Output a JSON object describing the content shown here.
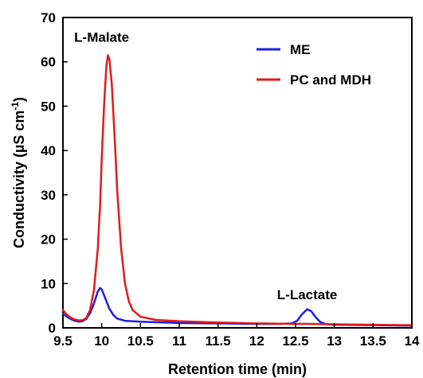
{
  "chart_data": {
    "type": "line",
    "xlabel": "Retention time (min)",
    "ylabel_main": "Conductivity (µS cm",
    "ylabel_sup": "-1",
    "ylabel_close": ")",
    "xlim": [
      9.5,
      14
    ],
    "ylim": [
      0,
      70
    ],
    "x_ticks": [
      "9.5",
      "10",
      "10.5",
      "11",
      "11.5",
      "12",
      "12.5",
      "13",
      "13.5",
      "14"
    ],
    "y_ticks": [
      "0",
      "10",
      "20",
      "30",
      "40",
      "50",
      "60",
      "70"
    ],
    "grid": false,
    "legend_position": "top-right",
    "series": [
      {
        "name": "ME",
        "color": "#1f1fe0",
        "points": [
          [
            9.5,
            3.2
          ],
          [
            9.55,
            2.5
          ],
          [
            9.6,
            2.0
          ],
          [
            9.65,
            1.6
          ],
          [
            9.7,
            1.4
          ],
          [
            9.75,
            1.5
          ],
          [
            9.8,
            2.0
          ],
          [
            9.85,
            3.3
          ],
          [
            9.9,
            5.5
          ],
          [
            9.95,
            8.2
          ],
          [
            9.98,
            9.0
          ],
          [
            10.0,
            8.7
          ],
          [
            10.05,
            6.5
          ],
          [
            10.1,
            4.3
          ],
          [
            10.15,
            2.9
          ],
          [
            10.2,
            2.1
          ],
          [
            10.3,
            1.6
          ],
          [
            10.5,
            1.4
          ],
          [
            11.0,
            1.1
          ],
          [
            11.5,
            1.0
          ],
          [
            12.0,
            0.9
          ],
          [
            12.3,
            0.9
          ],
          [
            12.45,
            1.0
          ],
          [
            12.52,
            1.6
          ],
          [
            12.58,
            3.0
          ],
          [
            12.65,
            4.2
          ],
          [
            12.7,
            3.8
          ],
          [
            12.76,
            2.4
          ],
          [
            12.82,
            1.3
          ],
          [
            12.9,
            0.8
          ],
          [
            13.0,
            0.7
          ],
          [
            13.5,
            0.6
          ],
          [
            14.0,
            0.5
          ]
        ]
      },
      {
        "name": "PC and MDH",
        "color": "#e01a1a",
        "points": [
          [
            9.5,
            4.0
          ],
          [
            9.55,
            3.0
          ],
          [
            9.6,
            2.3
          ],
          [
            9.65,
            1.9
          ],
          [
            9.7,
            1.7
          ],
          [
            9.75,
            1.7
          ],
          [
            9.8,
            2.2
          ],
          [
            9.85,
            4.0
          ],
          [
            9.9,
            8.5
          ],
          [
            9.95,
            18.0
          ],
          [
            9.98,
            28.0
          ],
          [
            10.0,
            38.0
          ],
          [
            10.03,
            50.0
          ],
          [
            10.06,
            59.0
          ],
          [
            10.08,
            61.5
          ],
          [
            10.1,
            60.5
          ],
          [
            10.13,
            55.0
          ],
          [
            10.17,
            42.0
          ],
          [
            10.2,
            31.0
          ],
          [
            10.25,
            18.0
          ],
          [
            10.3,
            10.0
          ],
          [
            10.35,
            6.0
          ],
          [
            10.4,
            4.0
          ],
          [
            10.5,
            2.5
          ],
          [
            10.7,
            1.8
          ],
          [
            11.0,
            1.5
          ],
          [
            11.5,
            1.2
          ],
          [
            12.0,
            1.0
          ],
          [
            12.5,
            0.9
          ],
          [
            12.65,
            0.9
          ],
          [
            13.0,
            0.8
          ],
          [
            13.5,
            0.7
          ],
          [
            14.0,
            0.6
          ]
        ]
      }
    ],
    "annotations": [
      {
        "text": "L-Malate",
        "x": 10.0,
        "y": 64.5
      },
      {
        "text": "L-Lactate",
        "x": 12.65,
        "y": 6.5
      }
    ]
  }
}
